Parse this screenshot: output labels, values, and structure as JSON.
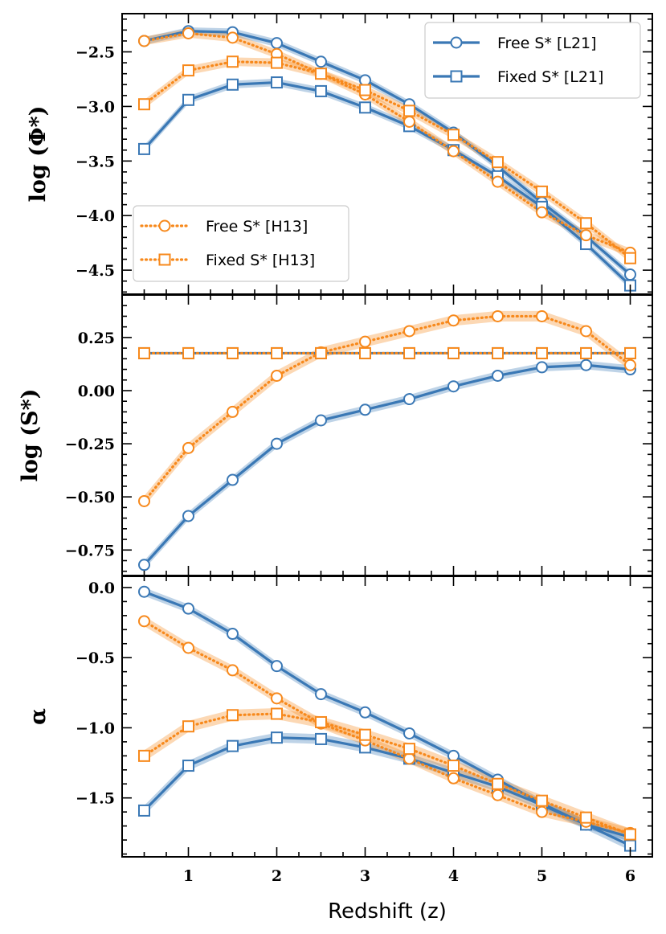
{
  "chart_data": [
    {
      "type": "line",
      "panel": "top",
      "ylabel": "log (Φ*)",
      "xlim": [
        0.25,
        6.25
      ],
      "ylim": [
        -4.72,
        -2.15
      ],
      "yticks": [
        -2.5,
        -3.0,
        -3.5,
        -4.0,
        -4.5
      ],
      "ytick_labels": [
        "−2.5",
        "−3.0",
        "−3.5",
        "−4.0",
        "−4.5"
      ],
      "x": [
        0.5,
        1.0,
        1.5,
        2.0,
        2.5,
        3.0,
        3.5,
        4.0,
        4.5,
        5.0,
        5.5,
        6.0
      ],
      "series": [
        {
          "name": "Free S* [L21]",
          "color": "#3a78b5",
          "marker": "circle",
          "style": "solid",
          "values": [
            -2.4,
            -2.31,
            -2.32,
            -2.42,
            -2.59,
            -2.76,
            -2.98,
            -3.24,
            -3.55,
            -3.88,
            -4.19,
            -4.54
          ],
          "band": 0.035
        },
        {
          "name": "Fixed S* [L21]",
          "color": "#3a78b5",
          "marker": "square",
          "style": "solid",
          "values": [
            -3.39,
            -2.94,
            -2.8,
            -2.78,
            -2.86,
            -3.01,
            -3.18,
            -3.4,
            -3.64,
            -3.92,
            -4.26,
            -4.64
          ],
          "band": 0.035
        },
        {
          "name": "Free S* [H13]",
          "color": "#f7891c",
          "marker": "circle",
          "style": "dotted",
          "values": [
            -2.4,
            -2.33,
            -2.37,
            -2.52,
            -2.7,
            -2.89,
            -3.14,
            -3.41,
            -3.69,
            -3.97,
            -4.18,
            -4.34
          ],
          "band": 0.04
        },
        {
          "name": "Fixed S* [H13]",
          "color": "#f7891c",
          "marker": "square",
          "style": "dotted",
          "values": [
            -2.98,
            -2.67,
            -2.59,
            -2.6,
            -2.7,
            -2.85,
            -3.04,
            -3.26,
            -3.51,
            -3.78,
            -4.07,
            -4.39
          ],
          "band": 0.04
        }
      ],
      "legends": [
        {
          "location": "upper right",
          "entries": [
            "Free S* [L21]",
            "Fixed S* [L21]"
          ]
        },
        {
          "location": "lower left",
          "entries": [
            "Free S* [H13]",
            "Fixed S* [H13]"
          ]
        }
      ]
    },
    {
      "type": "line",
      "panel": "middle",
      "ylabel": "log (S*)",
      "xlim": [
        0.25,
        6.25
      ],
      "ylim": [
        -0.87,
        0.45
      ],
      "yticks": [
        0.25,
        0.0,
        -0.25,
        -0.5,
        -0.75
      ],
      "ytick_labels": [
        "0.25",
        "0.00",
        "−0.25",
        "−0.50",
        "−0.75"
      ],
      "x": [
        0.5,
        1.0,
        1.5,
        2.0,
        2.5,
        3.0,
        3.5,
        4.0,
        4.5,
        5.0,
        5.5,
        6.0
      ],
      "series": [
        {
          "name": "Free S* [L21]",
          "color": "#3a78b5",
          "marker": "circle",
          "style": "solid",
          "values": [
            -0.82,
            -0.59,
            -0.42,
            -0.25,
            -0.14,
            -0.09,
            -0.04,
            0.02,
            0.07,
            0.11,
            0.12,
            0.1
          ],
          "band": 0.02
        },
        {
          "name": "Fixed S* [L21]",
          "color": "#3a78b5",
          "marker": "square",
          "style": "solid",
          "values": [
            0.176,
            0.176,
            0.176,
            0.176,
            0.176,
            0.176,
            0.176,
            0.176,
            0.176,
            0.176,
            0.176,
            0.176
          ],
          "band": 0.0
        },
        {
          "name": "Free S* [H13]",
          "color": "#f7891c",
          "marker": "circle",
          "style": "dotted",
          "values": [
            -0.52,
            -0.27,
            -0.1,
            0.07,
            0.18,
            0.23,
            0.28,
            0.33,
            0.35,
            0.35,
            0.28,
            0.12
          ],
          "band": 0.025
        },
        {
          "name": "Fixed S* [H13]",
          "color": "#f7891c",
          "marker": "square",
          "style": "dotted",
          "values": [
            0.176,
            0.176,
            0.176,
            0.176,
            0.176,
            0.176,
            0.176,
            0.176,
            0.176,
            0.176,
            0.176,
            0.176
          ],
          "band": 0.0
        }
      ]
    },
    {
      "type": "line",
      "panel": "bottom",
      "ylabel": "α",
      "xlabel": "Redshift (z)",
      "xlim": [
        0.25,
        6.25
      ],
      "ylim": [
        -1.92,
        0.08
      ],
      "xticks": [
        1,
        2,
        3,
        4,
        5,
        6
      ],
      "xtick_labels": [
        "1",
        "2",
        "3",
        "4",
        "5",
        "6"
      ],
      "yticks": [
        0.0,
        -0.5,
        -1.0,
        -1.5
      ],
      "ytick_labels": [
        "0.0",
        "−0.5",
        "−1.0",
        "−1.5"
      ],
      "x": [
        0.5,
        1.0,
        1.5,
        2.0,
        2.5,
        3.0,
        3.5,
        4.0,
        4.5,
        5.0,
        5.5,
        6.0
      ],
      "series": [
        {
          "name": "Free S* [L21]",
          "color": "#3a78b5",
          "marker": "circle",
          "style": "solid",
          "values": [
            -0.03,
            -0.15,
            -0.33,
            -0.56,
            -0.76,
            -0.89,
            -1.04,
            -1.2,
            -1.37,
            -1.54,
            -1.69,
            -1.78
          ],
          "band": 0.03
        },
        {
          "name": "Fixed S* [L21]",
          "color": "#3a78b5",
          "marker": "square",
          "style": "solid",
          "values": [
            -1.59,
            -1.27,
            -1.13,
            -1.07,
            -1.08,
            -1.14,
            -1.22,
            -1.32,
            -1.42,
            -1.55,
            -1.69,
            -1.84
          ],
          "band": 0.035
        },
        {
          "name": "Free S* [H13]",
          "color": "#f7891c",
          "marker": "circle",
          "style": "dotted",
          "values": [
            -0.24,
            -0.43,
            -0.59,
            -0.79,
            -0.97,
            -1.09,
            -1.22,
            -1.36,
            -1.48,
            -1.6,
            -1.67,
            -1.75
          ],
          "band": 0.035
        },
        {
          "name": "Fixed S* [H13]",
          "color": "#f7891c",
          "marker": "square",
          "style": "dotted",
          "values": [
            -1.2,
            -0.99,
            -0.91,
            -0.9,
            -0.96,
            -1.05,
            -1.15,
            -1.27,
            -1.4,
            -1.52,
            -1.64,
            -1.76
          ],
          "band": 0.04
        }
      ]
    }
  ]
}
